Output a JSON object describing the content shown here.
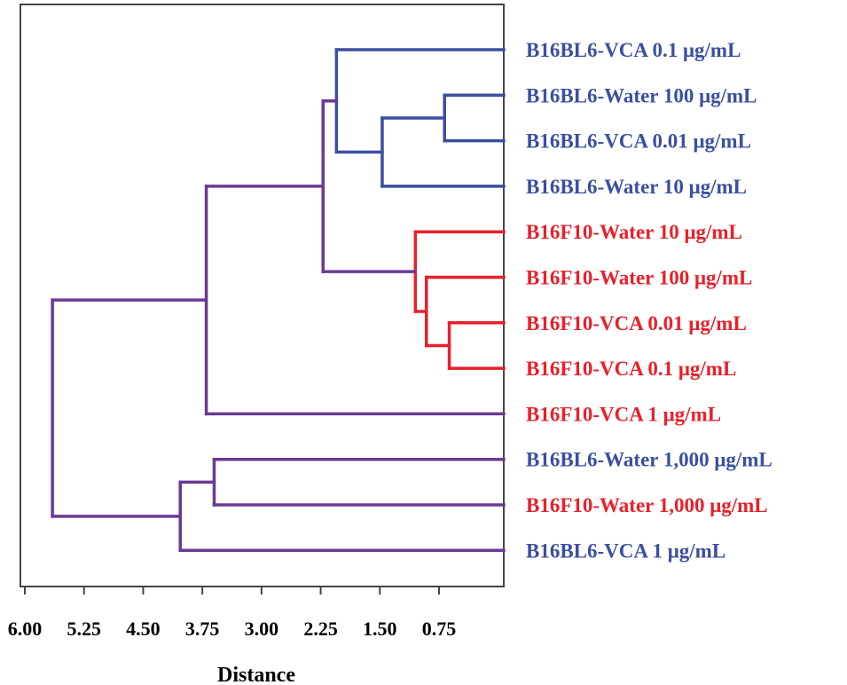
{
  "chart_data": {
    "type": "dendrogram",
    "title": "",
    "xlabel": "Distance",
    "ylabel": "",
    "xlim": [
      6.0,
      0.0
    ],
    "ticks": [
      6.0,
      5.25,
      4.5,
      3.75,
      3.0,
      2.25,
      1.5,
      0.75
    ],
    "tick_labels": [
      "6.00",
      "5.25",
      "4.50",
      "3.75",
      "3.00",
      "2.25",
      "1.50",
      "0.75"
    ],
    "colors": {
      "blue": "#3b4fa0",
      "red": "#e8202a",
      "purple": "#6b3a94",
      "axis": "#444444",
      "text": "#000000"
    },
    "leaves": [
      {
        "label": "B16BL6-VCA 0.1 μg/mL",
        "group": "blue"
      },
      {
        "label": "B16BL6-Water 100 μg/mL",
        "group": "blue"
      },
      {
        "label": "B16BL6-VCA 0.01 μg/mL",
        "group": "blue"
      },
      {
        "label": "B16BL6-Water 10 μg/mL",
        "group": "blue"
      },
      {
        "label": "B16F10-Water 10 μg/mL",
        "group": "red"
      },
      {
        "label": "B16F10-Water 100 μg/mL",
        "group": "red"
      },
      {
        "label": "B16F10-VCA 0.01 μg/mL",
        "group": "red"
      },
      {
        "label": "B16F10-VCA 0.1 μg/mL",
        "group": "red"
      },
      {
        "label": "B16F10-VCA 1 μg/mL",
        "group": "red"
      },
      {
        "label": "B16BL6-Water 1,000 μg/mL",
        "group": "blue"
      },
      {
        "label": "B16F10-Water 1,000 μg/mL",
        "group": "red"
      },
      {
        "label": "B16BL6-VCA 1 μg/mL",
        "group": "blue"
      }
    ],
    "merges": [
      {
        "id": "n1",
        "children": [
          "L1",
          "L2"
        ],
        "height": 0.68,
        "color": "blue"
      },
      {
        "id": "n2",
        "children": [
          "L6",
          "L7"
        ],
        "height": 0.62,
        "color": "red"
      },
      {
        "id": "n3",
        "children": [
          "L5",
          "n2"
        ],
        "height": 0.91,
        "color": "red"
      },
      {
        "id": "n4",
        "children": [
          "L4",
          "n3"
        ],
        "height": 1.05,
        "color": "red"
      },
      {
        "id": "n5",
        "children": [
          "n1",
          "L3"
        ],
        "height": 1.47,
        "color": "blue"
      },
      {
        "id": "n6",
        "children": [
          "L0",
          "n5"
        ],
        "height": 2.05,
        "color": "blue"
      },
      {
        "id": "n7",
        "children": [
          "n6",
          "n4"
        ],
        "height": 2.22,
        "color": "purple"
      },
      {
        "id": "n8",
        "children": [
          "L9",
          "L10"
        ],
        "height": 3.6,
        "color": "purple"
      },
      {
        "id": "n9",
        "children": [
          "n7",
          "L8"
        ],
        "height": 3.7,
        "color": "purple"
      },
      {
        "id": "n10",
        "children": [
          "n8",
          "L11"
        ],
        "height": 4.03,
        "color": "purple"
      },
      {
        "id": "n11",
        "children": [
          "n9",
          "n10"
        ],
        "height": 5.65,
        "color": "purple"
      }
    ]
  }
}
